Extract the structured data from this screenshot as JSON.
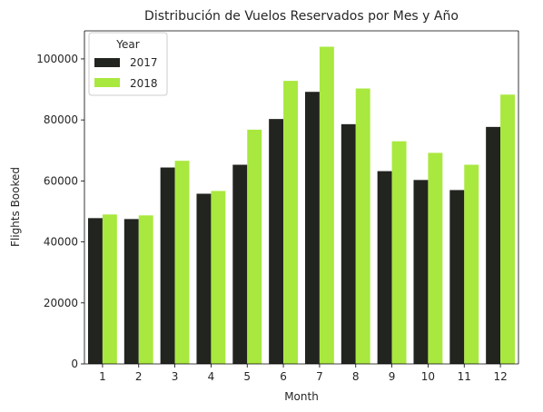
{
  "chart_data": {
    "type": "bar",
    "title": "Distribución de Vuelos Reservados por Mes y Año",
    "xlabel": "Month",
    "ylabel": "Flights Booked",
    "categories": [
      "1",
      "2",
      "3",
      "4",
      "5",
      "6",
      "7",
      "8",
      "9",
      "10",
      "11",
      "12"
    ],
    "series": [
      {
        "name": "2017",
        "color": "#22241f",
        "values": [
          47800,
          47500,
          64400,
          55800,
          65300,
          80300,
          89200,
          78600,
          63200,
          60300,
          57000,
          77700
        ]
      },
      {
        "name": "2018",
        "color": "#a9e83f",
        "values": [
          49000,
          48700,
          66600,
          56700,
          76800,
          92800,
          104000,
          90300,
          73000,
          69200,
          65300,
          88300
        ]
      }
    ],
    "ylim": [
      0,
      109200
    ],
    "yticks": [
      0,
      20000,
      40000,
      60000,
      80000,
      100000
    ],
    "legend": {
      "title": "Year",
      "position": "top-left"
    },
    "grid": false
  }
}
